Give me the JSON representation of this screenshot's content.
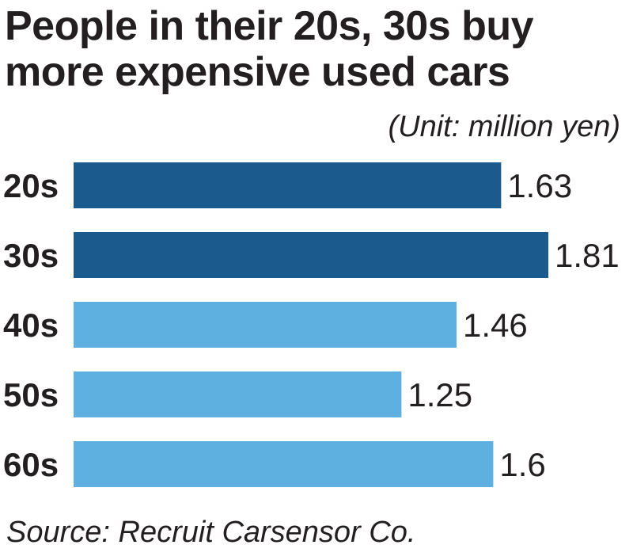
{
  "title_lines": [
    "People in their 20s, 30s buy",
    "more expensive used cars"
  ],
  "unit_note": "(Unit: million yen)",
  "source": "Source: Recruit Carsensor Co.",
  "colors": {
    "highlight": "#1a5a8c",
    "normal": "#5eb0e0",
    "text": "#231f20"
  },
  "chart_data": {
    "type": "bar",
    "orientation": "horizontal",
    "categories": [
      "20s",
      "30s",
      "40s",
      "50s",
      "60s"
    ],
    "values": [
      1.63,
      1.81,
      1.46,
      1.25,
      1.6
    ],
    "value_labels": [
      "1.63",
      "1.81",
      "1.46",
      "1.25",
      "1.6"
    ],
    "highlighted": [
      true,
      true,
      false,
      false,
      false
    ],
    "title": "People in their 20s, 30s buy more expensive used cars",
    "xlabel": "",
    "ylabel": "",
    "xlim": [
      0,
      1.81
    ],
    "grid": false,
    "legend": "none"
  }
}
